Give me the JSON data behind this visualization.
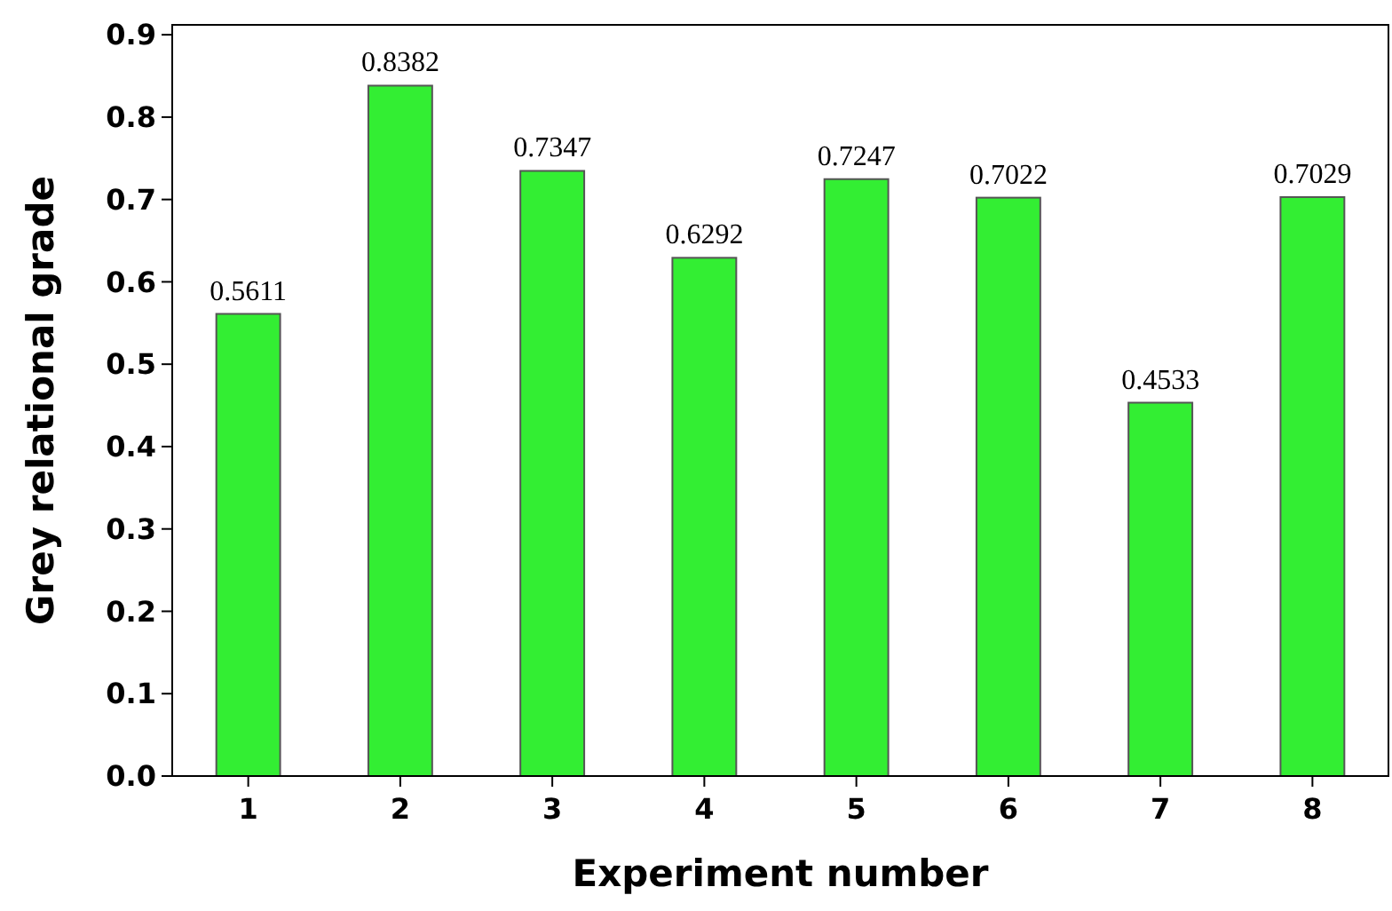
{
  "chart_data": {
    "type": "bar",
    "xlabel": "Experiment number",
    "ylabel": "Grey relational grade",
    "categories": [
      "1",
      "2",
      "3",
      "4",
      "5",
      "6",
      "7",
      "8"
    ],
    "values": [
      0.5611,
      0.8382,
      0.7347,
      0.6292,
      0.7247,
      0.7022,
      0.4533,
      0.7029
    ],
    "color": "#33ee33",
    "data_labels": true,
    "ylim": [
      0,
      0.912
    ],
    "yticks": [
      {
        "value": 0,
        "label": "0.0"
      },
      0.1,
      0.2,
      0.3,
      0.4,
      0.5,
      0.6,
      0.7,
      0.8,
      0.9
    ]
  }
}
